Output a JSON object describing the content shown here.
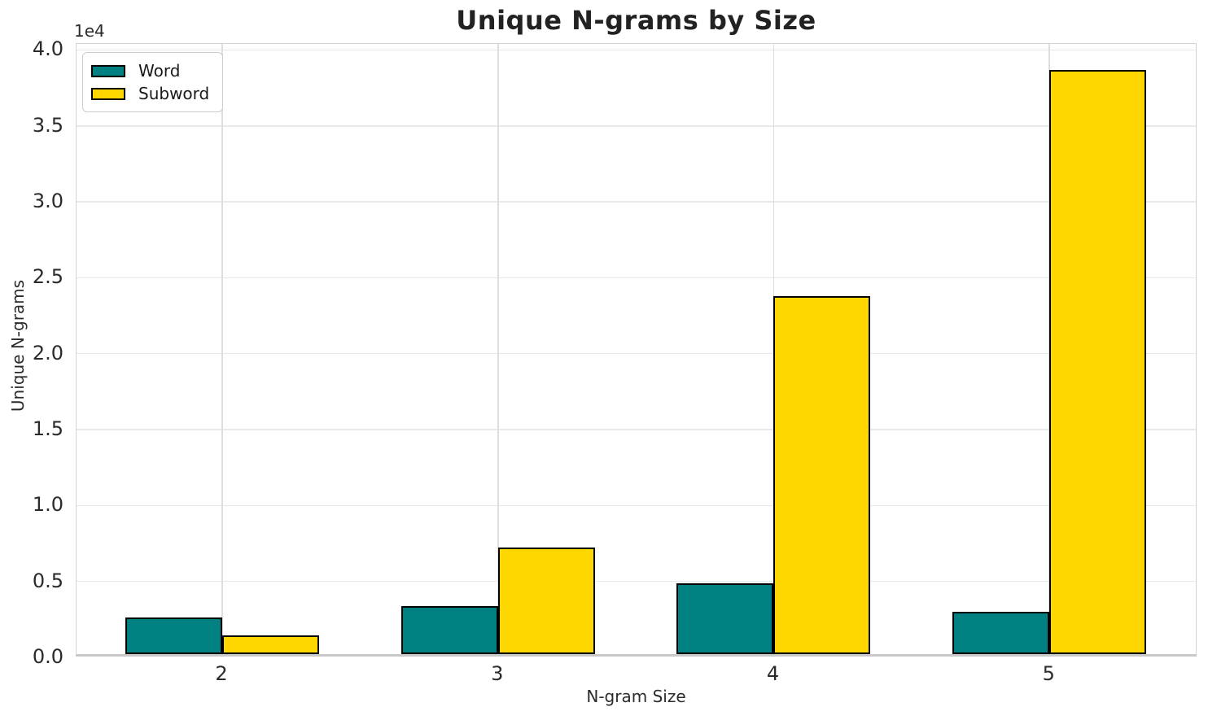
{
  "chart_data": {
    "type": "bar",
    "title": "Unique N-grams by Size",
    "xlabel": "N-gram Size",
    "ylabel": "Unique N-grams",
    "categories": [
      "2",
      "3",
      "4",
      "5"
    ],
    "series": [
      {
        "name": "Word",
        "color": "#008080",
        "edgecolor": "#000000",
        "values": [
          2400,
          3150,
          4650,
          2800
        ]
      },
      {
        "name": "Subword",
        "color": "#FFD700",
        "edgecolor": "#000000",
        "values": [
          1250,
          7000,
          23600,
          38450
        ]
      }
    ],
    "ylim": [
      0,
      40400
    ],
    "yticks": [
      0,
      5000,
      10000,
      15000,
      20000,
      25000,
      30000,
      35000,
      40000
    ],
    "ytick_labels": [
      "0.0",
      "0.5",
      "1.0",
      "1.5",
      "2.0",
      "2.5",
      "3.0",
      "3.5",
      "4.0"
    ],
    "y_offset_text": "1e4",
    "grid": true,
    "legend": {
      "position": "upper left",
      "entries": [
        "Word",
        "Subword"
      ]
    }
  }
}
